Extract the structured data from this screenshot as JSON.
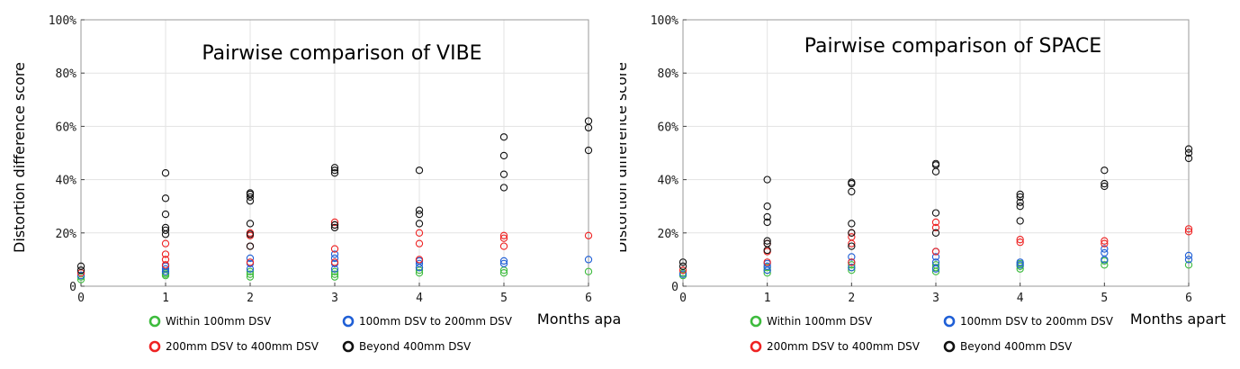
{
  "chart_data": [
    {
      "type": "scatter",
      "title": "Pairwise comparison of VIBE",
      "xlabel": "Months apart",
      "ylabel": "Distortion difference score",
      "xlim": [
        0,
        6
      ],
      "ylim": [
        0,
        100
      ],
      "xticks": [
        "0",
        "1",
        "2",
        "3",
        "4",
        "5",
        "6"
      ],
      "yticks": [
        "0",
        "20%",
        "40%",
        "60%",
        "80%",
        "100%"
      ],
      "grid": true,
      "legend": "bottom",
      "series": [
        {
          "name": "Within 100mm DSV",
          "color": "#3dbb3d",
          "x": [
            0,
            0,
            1,
            1,
            1,
            2,
            2,
            2,
            3,
            3,
            3,
            4,
            4,
            4,
            5,
            5,
            6
          ],
          "y": [
            2.5,
            3.5,
            4,
            4.5,
            5,
            3.5,
            4.5,
            5.5,
            3.5,
            4.5,
            5.5,
            5,
            6,
            7,
            5,
            6,
            5.5
          ]
        },
        {
          "name": "100mm DSV to 200mm DSV",
          "color": "#1f5fd6",
          "x": [
            0,
            1,
            1,
            1,
            2,
            2,
            2,
            3,
            3,
            3,
            3,
            4,
            4,
            4,
            5,
            5,
            6
          ],
          "y": [
            4,
            5.5,
            6.5,
            7.5,
            6.5,
            8.5,
            10.5,
            6.5,
            8.5,
            10.5,
            12,
            7,
            8.5,
            9.5,
            8.5,
            9.5,
            10
          ]
        },
        {
          "name": "200mm DSV to 400mm DSV",
          "color": "#ee2222",
          "x": [
            0,
            1,
            1,
            1,
            1,
            2,
            2,
            2,
            2,
            3,
            3,
            3,
            3,
            4,
            4,
            4,
            5,
            5,
            5,
            6
          ],
          "y": [
            5,
            8,
            10,
            12,
            16,
            9,
            15,
            19,
            20,
            9,
            14,
            23,
            24,
            10,
            16,
            20,
            15,
            18,
            19,
            19
          ]
        },
        {
          "name": "Beyond 400mm DSV",
          "color": "#111111",
          "x": [
            0,
            0,
            1,
            1,
            1,
            1,
            1,
            1,
            2,
            2,
            2,
            2,
            2,
            2,
            2,
            3,
            3,
            3,
            3,
            3,
            4,
            4,
            4,
            4,
            5,
            5,
            5,
            5,
            6,
            6,
            6
          ],
          "y": [
            6,
            7.5,
            19.5,
            21,
            22,
            27,
            33,
            42.5,
            15,
            19.5,
            23.5,
            32,
            33.5,
            34.5,
            35,
            22,
            23,
            42.5,
            43.5,
            44.5,
            23.5,
            27,
            28.5,
            43.5,
            37,
            42,
            49,
            56,
            51,
            59.5,
            62
          ]
        }
      ]
    },
    {
      "type": "scatter",
      "title": "Pairwise comparison of SPACE",
      "xlabel": "Months apart",
      "ylabel": "Distortion difference score",
      "xlim": [
        0,
        6
      ],
      "ylim": [
        0,
        100
      ],
      "xticks": [
        "0",
        "1",
        "2",
        "3",
        "4",
        "5",
        "6"
      ],
      "yticks": [
        "0",
        "20%",
        "40%",
        "60%",
        "80%",
        "100%"
      ],
      "grid": true,
      "legend": "bottom",
      "series": [
        {
          "name": "Within 100mm DSV",
          "color": "#3dbb3d",
          "x": [
            0,
            0,
            1,
            1,
            1,
            2,
            2,
            2,
            3,
            3,
            3,
            4,
            4,
            4,
            5,
            5,
            6
          ],
          "y": [
            4,
            5,
            5,
            6,
            7,
            6,
            7,
            8,
            5.5,
            7,
            8,
            6.5,
            7.5,
            8.5,
            8,
            9.5,
            8
          ]
        },
        {
          "name": "100mm DSV to 200mm DSV",
          "color": "#1f5fd6",
          "x": [
            0,
            1,
            1,
            1,
            2,
            2,
            2,
            3,
            3,
            3,
            3,
            4,
            4,
            5,
            5,
            5,
            6,
            6
          ],
          "y": [
            4.5,
            6,
            7.5,
            8.5,
            7,
            9,
            11,
            6.5,
            9,
            11,
            13,
            8,
            9,
            10,
            12.5,
            14,
            10,
            11.5
          ]
        },
        {
          "name": "200mm DSV to 400mm DSV",
          "color": "#ee2222",
          "x": [
            0,
            1,
            1,
            1,
            2,
            2,
            2,
            2,
            3,
            3,
            3,
            4,
            4,
            5,
            5,
            6,
            6
          ],
          "y": [
            6,
            9,
            13,
            16,
            9,
            16,
            18.5,
            20,
            13,
            22,
            24,
            16.5,
            17.5,
            16,
            17,
            20.5,
            21.5
          ]
        },
        {
          "name": "Beyond 400mm DSV",
          "color": "#111111",
          "x": [
            0,
            0,
            1,
            1,
            1,
            1,
            1,
            1,
            1,
            2,
            2,
            2,
            2,
            2,
            2,
            3,
            3,
            3,
            3,
            3,
            4,
            4,
            4,
            4,
            4,
            5,
            5,
            5,
            6,
            6,
            6
          ],
          "y": [
            7.5,
            9,
            13.5,
            16,
            17,
            24,
            26,
            30,
            40,
            15,
            20,
            23.5,
            35.5,
            38.5,
            39,
            20,
            27.5,
            43,
            45.5,
            46,
            24.5,
            30,
            31.5,
            33.5,
            34.5,
            37.5,
            38.5,
            43.5,
            48,
            50,
            51.5
          ]
        }
      ]
    }
  ]
}
